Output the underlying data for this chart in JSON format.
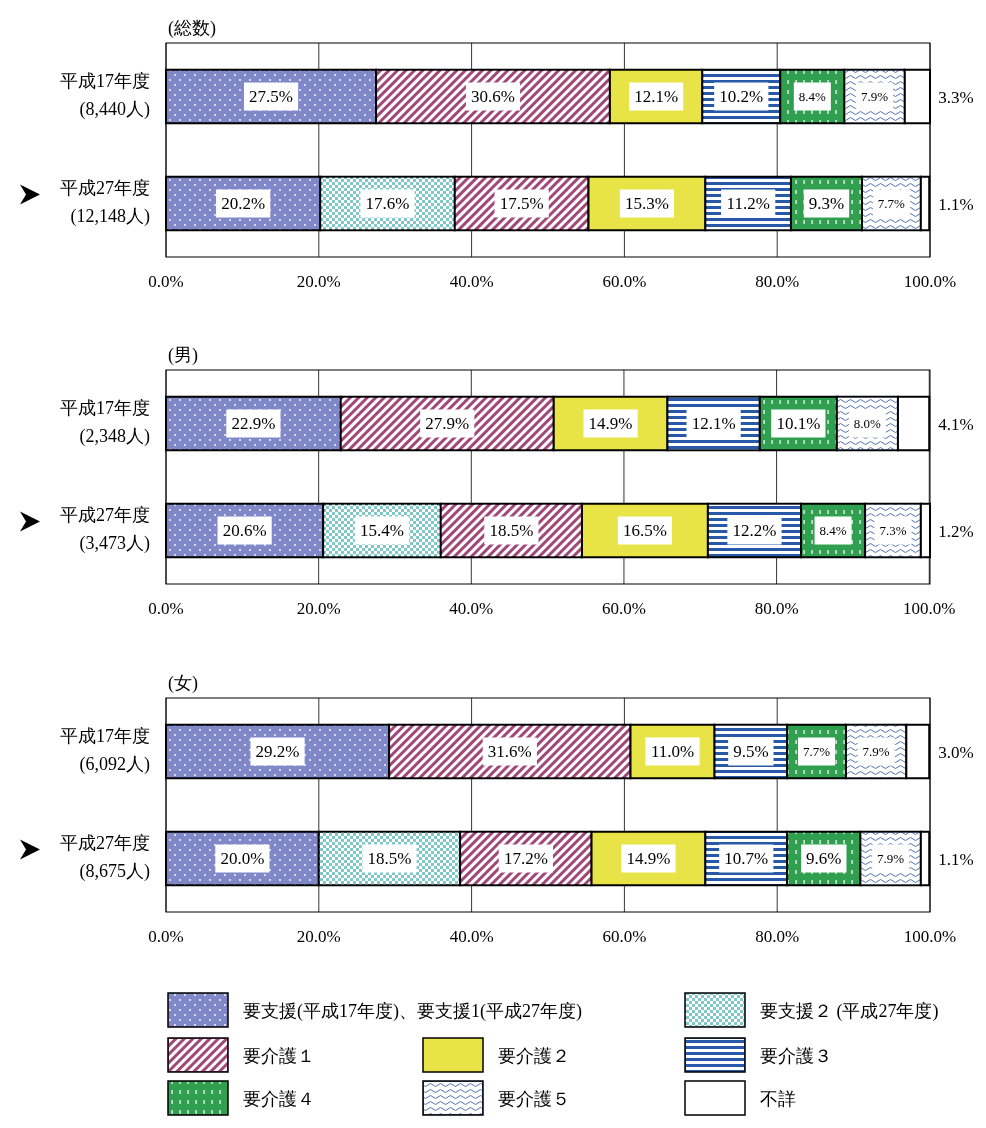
{
  "chart_data": [
    {
      "type": "bar",
      "orientation": "horizontal",
      "stacked": true,
      "title": "(総数)",
      "categories": [
        "平成17年度\n(8,440人)",
        "平成27年度\n(12,148人)"
      ],
      "xlim": [
        0,
        100
      ],
      "xticks": [
        {
          "value": 0,
          "label": "0.0%"
        },
        {
          "value": 20,
          "label": "20.0%"
        },
        {
          "value": 40,
          "label": "40.0%"
        },
        {
          "value": 60,
          "label": "60.0%"
        },
        {
          "value": 80,
          "label": "80.0%"
        },
        {
          "value": 100,
          "label": "100.0%"
        }
      ],
      "grid": "x",
      "legend": false,
      "series": [
        {
          "color": "#8088c8",
          "values": [
            27.5,
            20.2
          ],
          "value_labels": [
            "27.5%",
            "20.2%"
          ]
        },
        {
          "color": "#80c8c8",
          "values": [
            null,
            17.6
          ],
          "value_labels": [
            null,
            "17.6%"
          ]
        },
        {
          "color": "#a04878",
          "values": [
            30.6,
            17.5
          ],
          "value_labels": [
            "30.6%",
            "17.5%"
          ]
        },
        {
          "color": "#e8e448",
          "values": [
            12.1,
            15.3
          ],
          "value_labels": [
            "12.1%",
            "15.3%"
          ]
        },
        {
          "color": "#2858a8",
          "values": [
            10.2,
            11.2
          ],
          "value_labels": [
            "10.2%",
            "11.2%"
          ]
        },
        {
          "color": "#30a050",
          "values": [
            8.4,
            9.3
          ],
          "value_labels": [
            "8.4%",
            "9.3%"
          ]
        },
        {
          "color": "#5070b0",
          "values": [
            7.9,
            7.7
          ],
          "value_labels": [
            "7.9%",
            "7.7%"
          ]
        },
        {
          "color": "#ffffff",
          "values": [
            3.3,
            1.1
          ],
          "value_labels": [
            "3.3%",
            "1.1%"
          ]
        }
      ]
    },
    {
      "type": "bar",
      "orientation": "horizontal",
      "stacked": true,
      "title": "(男)",
      "categories": [
        "平成17年度\n(2,348人)",
        "平成27年度\n(3,473人)"
      ],
      "xlim": [
        0,
        100.1
      ],
      "xticks": [
        {
          "value": 0,
          "label": "0.0%"
        },
        {
          "value": 20,
          "label": "20.0%"
        },
        {
          "value": 40,
          "label": "40.0%"
        },
        {
          "value": 60,
          "label": "60.0%"
        },
        {
          "value": 80,
          "label": "80.0%"
        },
        {
          "value": 100,
          "label": "100.0%"
        }
      ],
      "grid": "x",
      "legend": false,
      "series": [
        {
          "color": "#8088c8",
          "values": [
            22.9,
            20.6
          ],
          "value_labels": [
            "22.9%",
            "20.6%"
          ]
        },
        {
          "color": "#80c8c8",
          "values": [
            null,
            15.4
          ],
          "value_labels": [
            null,
            "15.4%"
          ]
        },
        {
          "color": "#a04878",
          "values": [
            27.9,
            18.5
          ],
          "value_labels": [
            "27.9%",
            "18.5%"
          ]
        },
        {
          "color": "#e8e448",
          "values": [
            14.9,
            16.5
          ],
          "value_labels": [
            "14.9%",
            "16.5%"
          ]
        },
        {
          "color": "#2858a8",
          "values": [
            12.1,
            12.2
          ],
          "value_labels": [
            "12.1%",
            "12.2%"
          ]
        },
        {
          "color": "#30a050",
          "values": [
            10.1,
            8.4
          ],
          "value_labels": [
            "10.1%",
            "8.4%"
          ]
        },
        {
          "color": "#5070b0",
          "values": [
            8.0,
            7.3
          ],
          "value_labels": [
            "8.0%",
            "7.3%"
          ]
        },
        {
          "color": "#ffffff",
          "values": [
            4.1,
            1.2
          ],
          "value_labels": [
            "4.1%",
            "1.2%"
          ]
        }
      ]
    },
    {
      "type": "bar",
      "orientation": "horizontal",
      "stacked": true,
      "title": "(女)",
      "categories": [
        "平成17年度\n(6,092人)",
        "平成27年度\n(8,675人)"
      ],
      "xlim": [
        0,
        100
      ],
      "xticks": [
        {
          "value": 0,
          "label": "0.0%"
        },
        {
          "value": 20,
          "label": "20.0%"
        },
        {
          "value": 40,
          "label": "40.0%"
        },
        {
          "value": 60,
          "label": "60.0%"
        },
        {
          "value": 80,
          "label": "80.0%"
        },
        {
          "value": 100,
          "label": "100.0%"
        }
      ],
      "grid": "x",
      "legend": "bottom",
      "series": [
        {
          "name": "要支援(平成17年度)、要支援1(平成27年度)",
          "color": "#8088c8",
          "values": [
            29.2,
            20.0
          ],
          "value_labels": [
            "29.2%",
            "20.0%"
          ]
        },
        {
          "name": "要支援２ (平成27年度)",
          "color": "#80c8c8",
          "values": [
            null,
            18.5
          ],
          "value_labels": [
            null,
            "18.5%"
          ]
        },
        {
          "name": "要介護１",
          "color": "#a04878",
          "values": [
            31.6,
            17.2
          ],
          "value_labels": [
            "31.6%",
            "17.2%"
          ]
        },
        {
          "name": "要介護２",
          "color": "#e8e448",
          "values": [
            11.0,
            14.9
          ],
          "value_labels": [
            "11.0%",
            "14.9%"
          ]
        },
        {
          "name": "要介護３",
          "color": "#2858a8",
          "values": [
            9.5,
            10.7
          ],
          "value_labels": [
            "9.5%",
            "10.7%"
          ]
        },
        {
          "name": "要介護４",
          "color": "#30a050",
          "values": [
            7.7,
            9.6
          ],
          "value_labels": [
            "7.7%",
            "9.6%"
          ]
        },
        {
          "name": "要介護５",
          "color": "#5070b0",
          "values": [
            7.9,
            7.9
          ],
          "value_labels": [
            "7.9%",
            "7.9%"
          ]
        },
        {
          "name": "不詳",
          "color": "#ffffff",
          "values": [
            3.0,
            1.1
          ],
          "value_labels": [
            "3.0%",
            "1.1%"
          ]
        }
      ]
    }
  ]
}
